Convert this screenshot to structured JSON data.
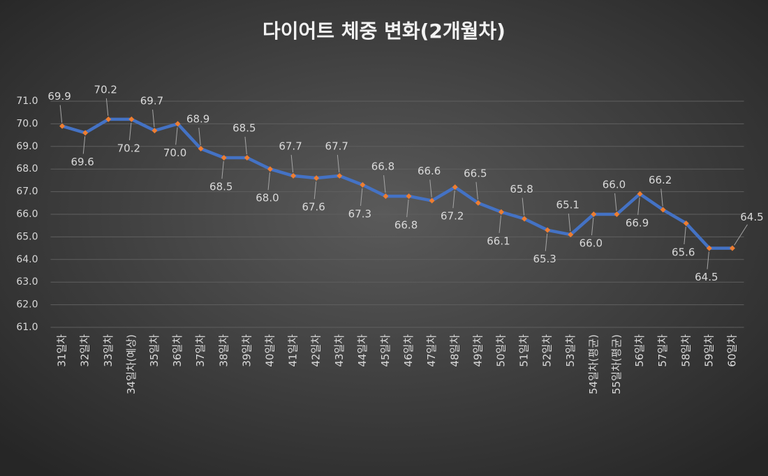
{
  "chart_data": {
    "type": "line",
    "title": "다이어트 체중 변화(2개월차)",
    "categories": [
      "31일차",
      "32일차",
      "33일차",
      "34일차(예상)",
      "35일차",
      "36일차",
      "37일차",
      "38일차",
      "39일차",
      "40일차",
      "41일차",
      "42일차",
      "43일차",
      "44일차",
      "45일차",
      "46일차",
      "47일차",
      "48일차",
      "49일차",
      "50일차",
      "51일차",
      "52일차",
      "53일차",
      "54일차(평균)",
      "55일차(평균)",
      "56일차",
      "57일차",
      "58일차",
      "59일차",
      "60일차"
    ],
    "series": [
      {
        "color": "#4472c4",
        "marker_color": "#ed7d31",
        "values": [
          69.9,
          69.6,
          70.2,
          70.2,
          69.7,
          70.0,
          68.9,
          68.5,
          68.5,
          68.0,
          67.7,
          67.6,
          67.7,
          67.3,
          66.8,
          66.8,
          66.6,
          67.2,
          66.5,
          66.1,
          65.8,
          65.3,
          65.1,
          66.0,
          66.0,
          66.9,
          66.2,
          65.6,
          64.5,
          64.5
        ],
        "value_labels": [
          "69.9",
          "69.6",
          "70.2",
          "70.2",
          "69.7",
          "70.0",
          "68.9",
          "68.5",
          "68.5",
          "68.0",
          "67.7",
          "67.6",
          "67.7",
          "67.3",
          "66.8",
          "66.8",
          "66.6",
          "67.2",
          "66.5",
          "66.1",
          "65.8",
          "65.3",
          "65.1",
          "66.0",
          "66.0",
          "66.9",
          "66.2",
          "65.6",
          "64.5",
          "64.5"
        ]
      }
    ],
    "ylim": [
      61,
      71
    ],
    "yticks": [
      {
        "value": 61,
        "label": "61.0"
      },
      {
        "value": 62,
        "label": "62.0"
      },
      {
        "value": 63,
        "label": "63.0"
      },
      {
        "value": 64,
        "label": "64.0"
      },
      {
        "value": 65,
        "label": "65.0"
      },
      {
        "value": 66,
        "label": "66.0"
      },
      {
        "value": 67,
        "label": "67.0"
      },
      {
        "value": 68,
        "label": "68.0"
      },
      {
        "value": 69,
        "label": "69.0"
      },
      {
        "value": 70,
        "label": "70.0"
      },
      {
        "value": 71,
        "label": "71.0"
      }
    ],
    "grid": true
  }
}
